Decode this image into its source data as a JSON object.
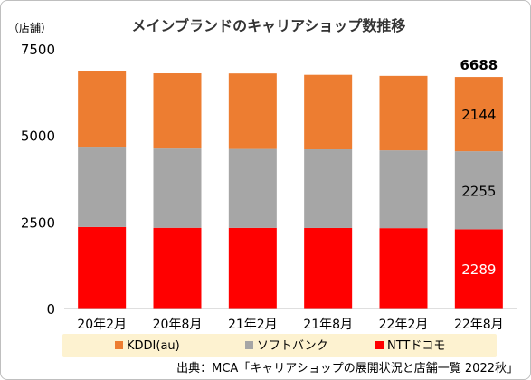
{
  "chart_data": {
    "type": "bar",
    "stacked": true,
    "title": "メインブランドのキャリアショップ数推移",
    "ylabel": "（店舗）",
    "ylim": [
      0,
      7500
    ],
    "yticks": [
      0,
      2500,
      5000,
      7500
    ],
    "grid": false,
    "legend_position": "bottom",
    "categories": [
      "20年2月",
      "20年8月",
      "21年2月",
      "21年8月",
      "22年2月",
      "22年8月"
    ],
    "series": [
      {
        "name": "NTTドコモ",
        "color": "#ff0000",
        "values": [
          2355,
          2332,
          2330,
          2327,
          2322,
          2289
        ]
      },
      {
        "name": "ソフトバンク",
        "color": "#a6a6a6",
        "values": [
          2295,
          2290,
          2280,
          2272,
          2248,
          2255
        ]
      },
      {
        "name": "KDDI(au)",
        "color": "#ed7d31",
        "values": [
          2200,
          2172,
          2180,
          2151,
          2150,
          2144
        ]
      }
    ],
    "legend_order": [
      "KDDI(au)",
      "ソフトバンク",
      "NTTドコモ"
    ],
    "annotations": {
      "total_label": "6688",
      "segment_labels": [
        "2289",
        "2255",
        "2144"
      ]
    },
    "source": "出典：MCA「キャリアショップの展開状況と店舗一覧 2022秋」",
    "legend_bg": "#fdf2d0"
  }
}
